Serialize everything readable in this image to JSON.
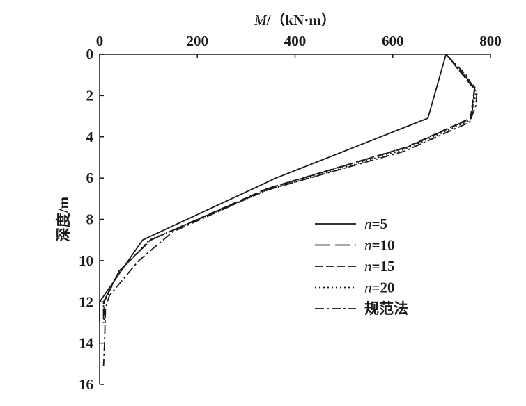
{
  "chart_data": {
    "type": "line",
    "xlabel_prefix": "M",
    "xlabel_suffix": "/（kN·m）",
    "ylabel": "深度/m",
    "xlim": [
      0,
      800
    ],
    "ylim": [
      0,
      16
    ],
    "x_axis_position": "top",
    "y_inverted": true,
    "grid": false,
    "legend_position": "lower-right",
    "x_ticks": [
      0,
      200,
      400,
      600,
      800
    ],
    "y_ticks": [
      0,
      2,
      4,
      6,
      8,
      10,
      12,
      14,
      16
    ],
    "series": [
      {
        "name_prefix": "n",
        "name_suffix": "=5",
        "style": "solid",
        "points": [
          [
            709,
            0
          ],
          [
            672,
            3.1
          ],
          [
            361,
            6
          ],
          [
            88,
            9
          ],
          [
            0,
            12
          ],
          [
            0,
            13
          ]
        ]
      },
      {
        "name_prefix": "n",
        "name_suffix": "=10",
        "style": "long-dash",
        "points": [
          [
            709,
            0
          ],
          [
            768,
            1.6
          ],
          [
            761,
            3.1
          ],
          [
            630,
            4.5
          ],
          [
            346,
            6.5
          ],
          [
            105,
            9
          ],
          [
            40,
            10.5
          ],
          [
            8,
            12
          ],
          [
            8,
            12.8
          ]
        ]
      },
      {
        "name_prefix": "n",
        "name_suffix": "=15",
        "style": "dash",
        "points": [
          [
            709,
            0
          ],
          [
            767,
            1.7
          ],
          [
            759,
            3.1
          ],
          [
            628,
            4.5
          ],
          [
            344,
            6.5
          ],
          [
            104,
            9
          ],
          [
            40,
            10.5
          ],
          [
            9,
            12
          ],
          [
            9,
            12.9
          ]
        ]
      },
      {
        "name_prefix": "n",
        "name_suffix": "=20",
        "style": "dot",
        "points": [
          [
            709,
            0
          ],
          [
            771,
            1.8
          ],
          [
            758,
            3.2
          ],
          [
            626,
            4.6
          ],
          [
            342,
            6.6
          ],
          [
            102,
            9
          ],
          [
            38,
            10.6
          ],
          [
            8,
            12.1
          ],
          [
            8,
            13
          ]
        ]
      },
      {
        "name_prefix": "",
        "name_suffix": "规范法",
        "style": "dash-dot",
        "points": [
          [
            709,
            0
          ],
          [
            750,
            1
          ],
          [
            772,
            1.9
          ],
          [
            770,
            2.5
          ],
          [
            757,
            3.3
          ],
          [
            624,
            4.7
          ],
          [
            340,
            6.6
          ],
          [
            150,
            8.6
          ],
          [
            80,
            10
          ],
          [
            20,
            11.7
          ],
          [
            12,
            12.3
          ],
          [
            10,
            14
          ],
          [
            8,
            15.1
          ]
        ]
      }
    ]
  }
}
